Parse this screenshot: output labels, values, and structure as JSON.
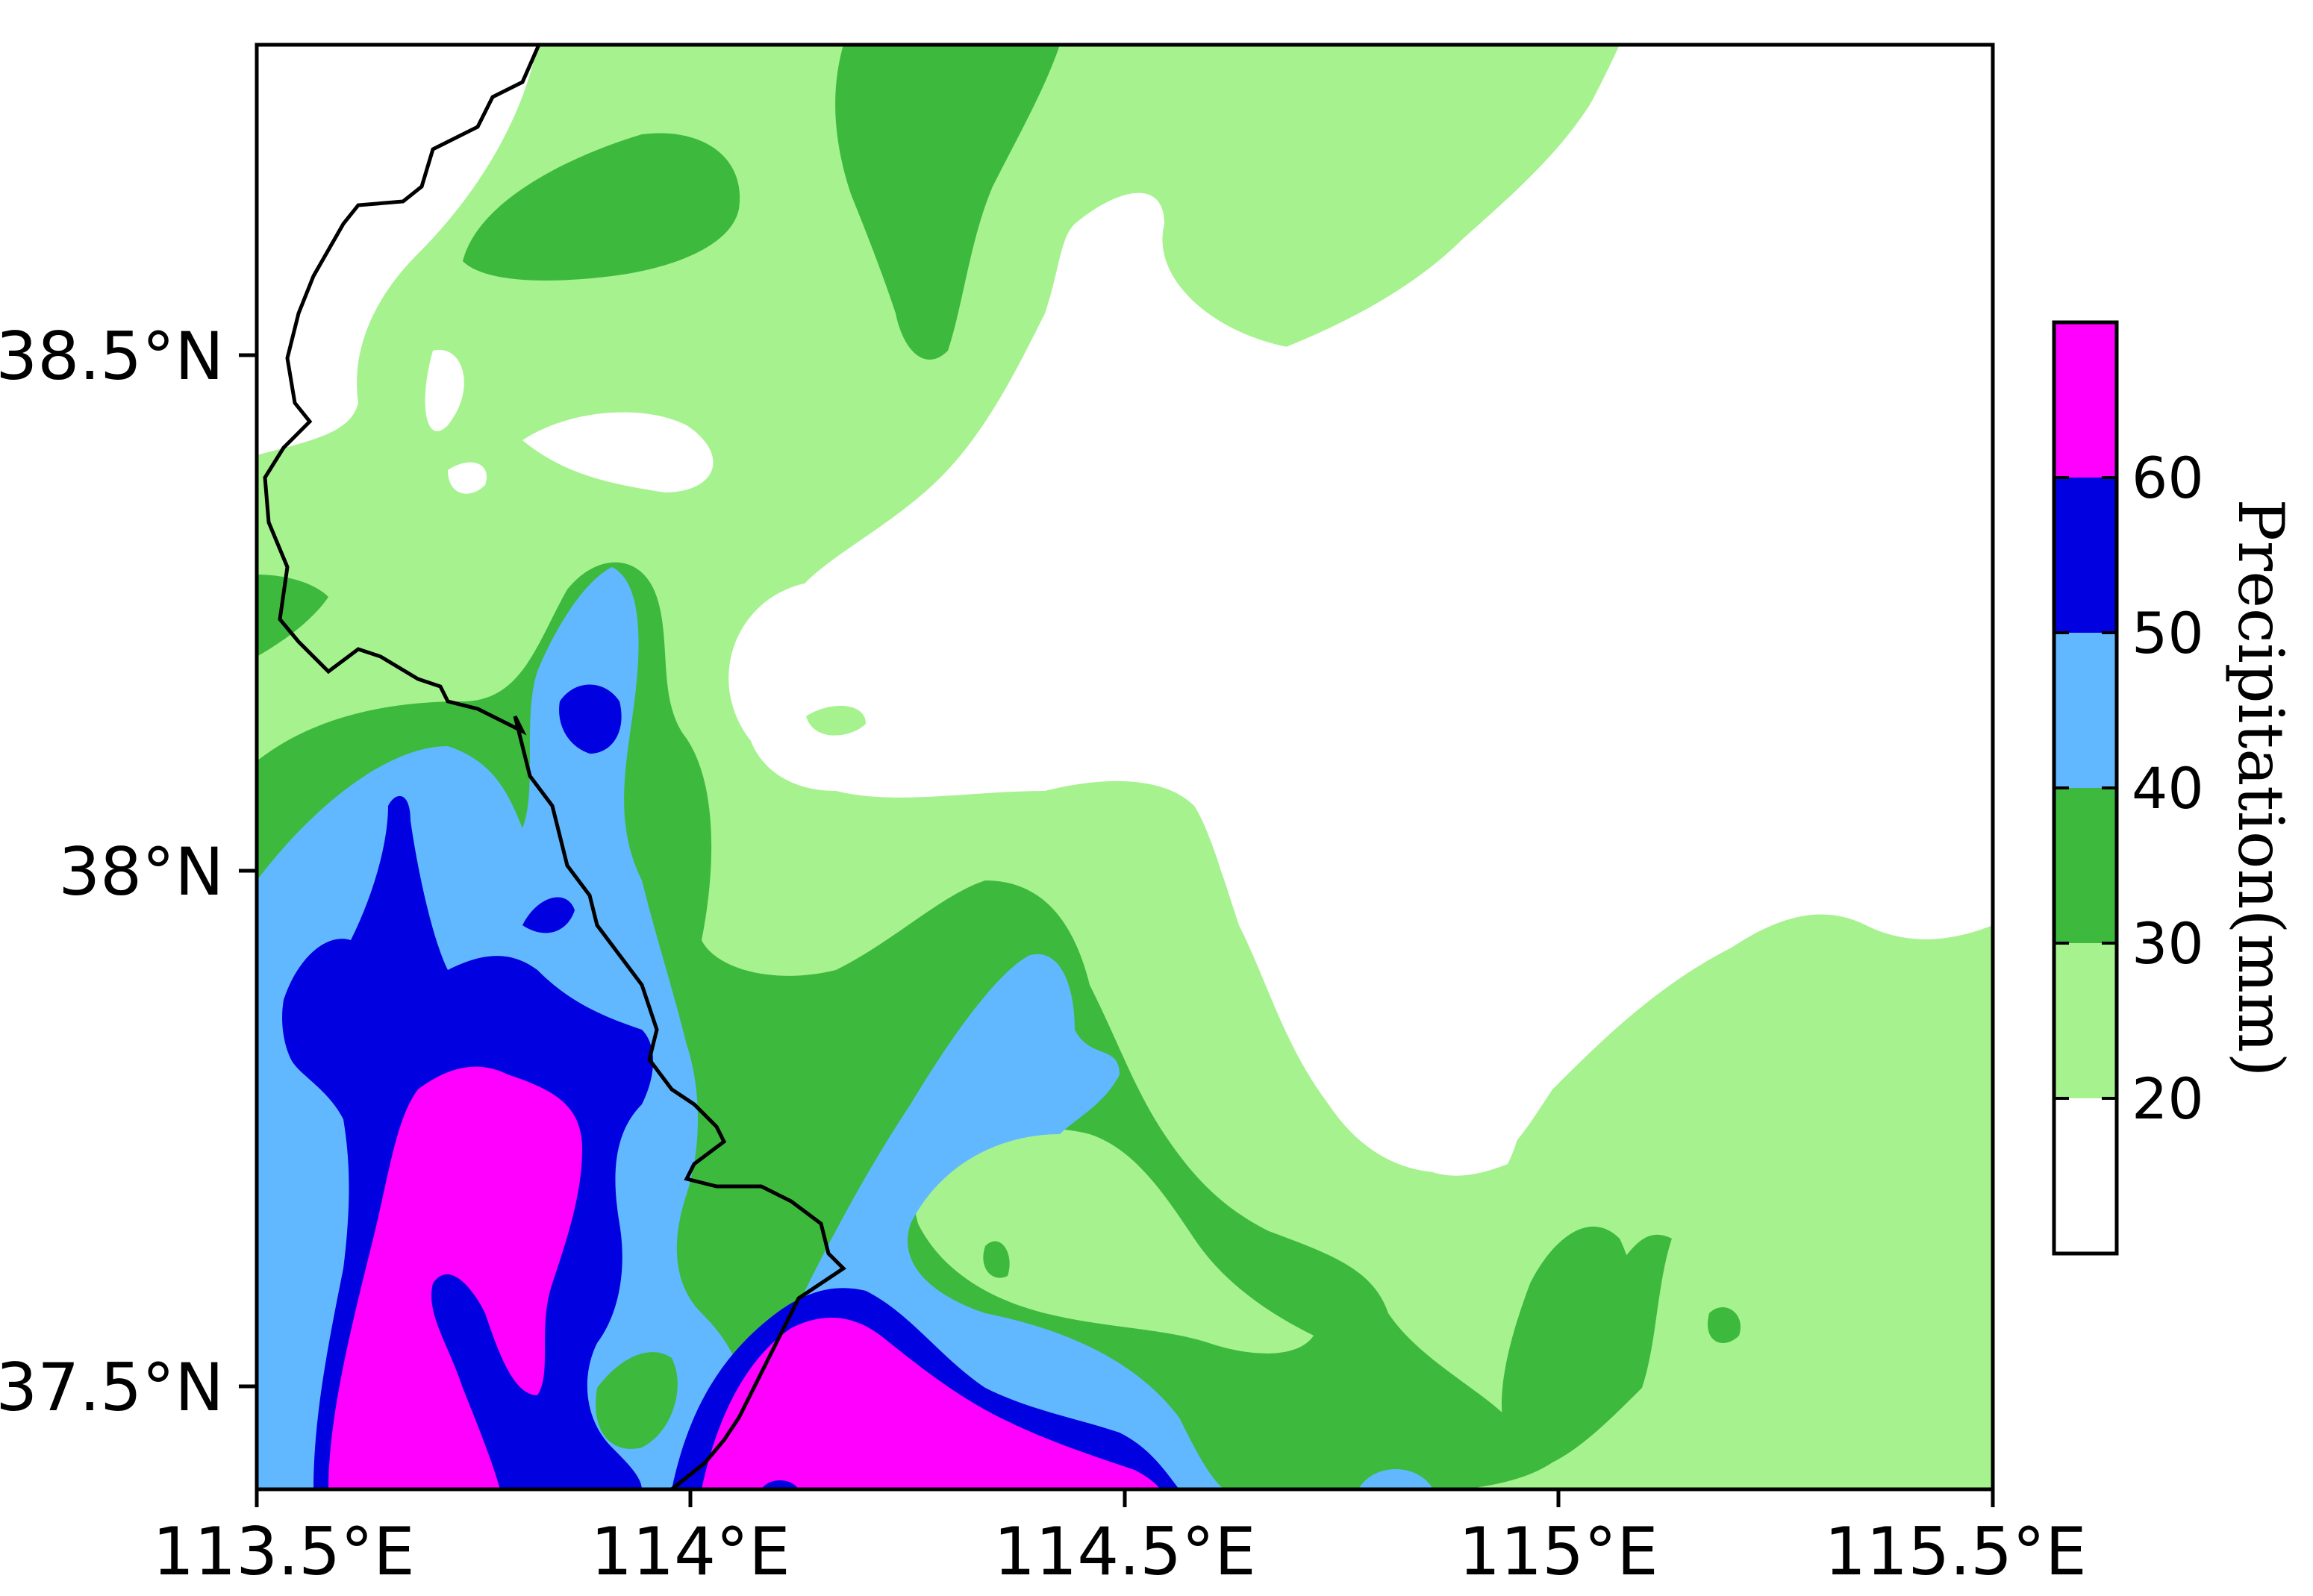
{
  "map": {
    "longitude_ticks": [
      "113.5°E",
      "114°E",
      "114.5°E",
      "115°E",
      "115.5°E"
    ],
    "latitude_ticks": [
      "38.5°N",
      "38°N",
      "37.5°N"
    ],
    "region_extent": {
      "lon_min": 113.5,
      "lon_max": 115.5,
      "lat_min": 37.4,
      "lat_max": 38.8
    }
  },
  "colorbar": {
    "title": "Precipitation(mm)",
    "levels": [
      "20",
      "30",
      "40",
      "50",
      "60"
    ],
    "colors": [
      "#ffffff",
      "#a6f28f",
      "#3dba3d",
      "#61b8ff",
      "#0000e1",
      "#ff00ff"
    ]
  }
}
